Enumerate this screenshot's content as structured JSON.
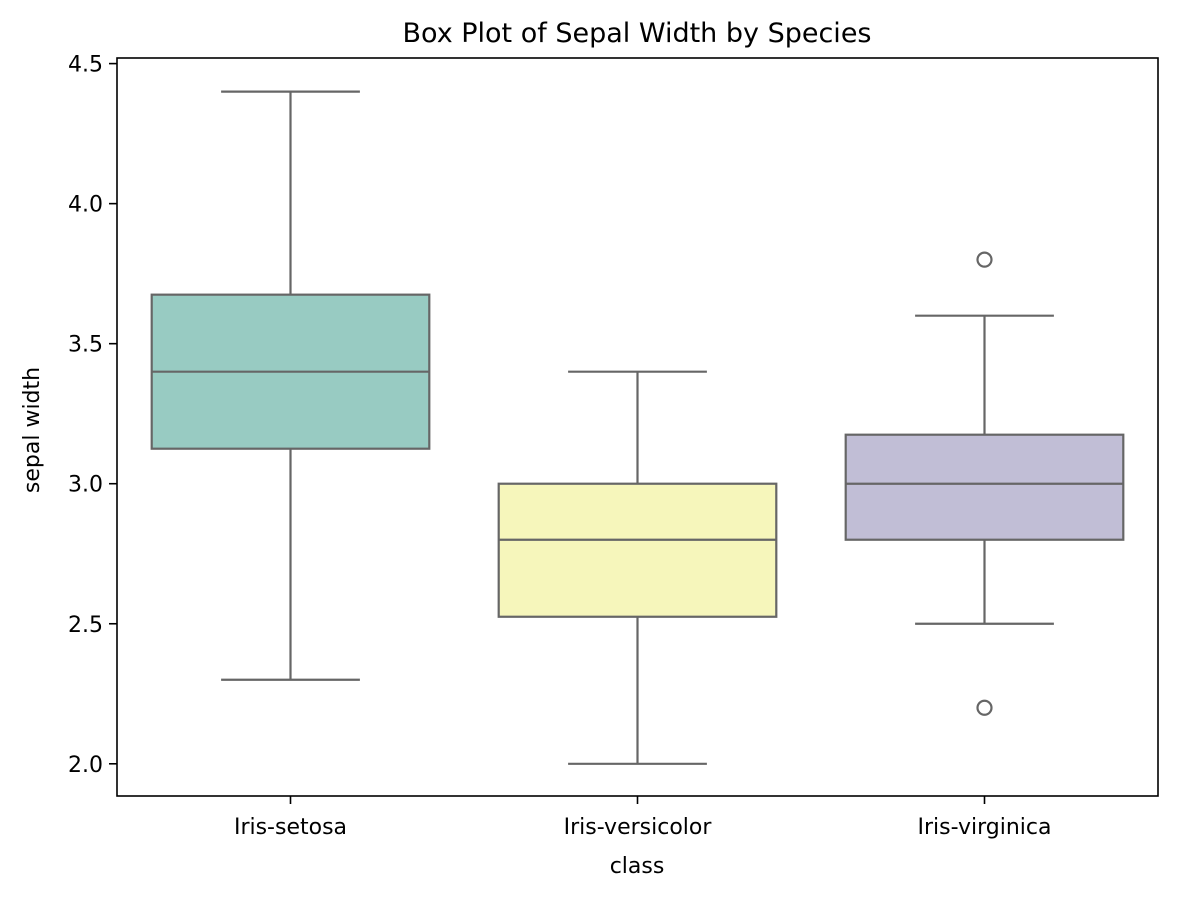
{
  "chart_data": {
    "type": "box",
    "title": "Box Plot of Sepal Width by Species",
    "xlabel": "class",
    "ylabel": "sepal width",
    "ylim": [
      1.885,
      4.52
    ],
    "yticks": [
      "2.0",
      "2.5",
      "3.0",
      "3.5",
      "4.0",
      "4.5"
    ],
    "grid": false,
    "categories": [
      "Iris-setosa",
      "Iris-versicolor",
      "Iris-virginica"
    ],
    "boxes": [
      {
        "category": "Iris-setosa",
        "whisker_low": 2.3,
        "q1": 3.125,
        "median": 3.4,
        "q3": 3.675,
        "whisker_high": 4.4,
        "outliers": [],
        "color": "#98cbc2"
      },
      {
        "category": "Iris-versicolor",
        "whisker_low": 2.0,
        "q1": 2.525,
        "median": 2.8,
        "q3": 3.0,
        "whisker_high": 3.4,
        "outliers": [],
        "color": "#f6f6bb"
      },
      {
        "category": "Iris-virginica",
        "whisker_low": 2.5,
        "q1": 2.8,
        "median": 3.0,
        "q3": 3.175,
        "whisker_high": 3.6,
        "outliers": [
          2.2,
          3.8
        ],
        "color": "#c1bed6"
      }
    ],
    "line_color": "#666666"
  }
}
